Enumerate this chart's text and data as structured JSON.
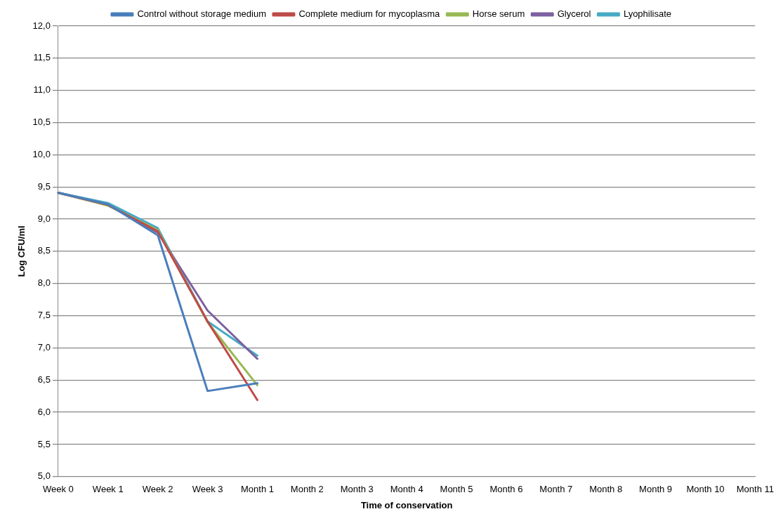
{
  "chart_data": {
    "type": "line",
    "xlabel": "Time of conservation",
    "ylabel": "Log CFU/ml",
    "categories": [
      "Week 0",
      "Week 1",
      "Week 2",
      "Week 3",
      "Month 1",
      "Month 2",
      "Month 3",
      "Month 4",
      "Month 5",
      "Month 6",
      "Month 7",
      "Month 8",
      "Month 9",
      "Month 10",
      "Month 11"
    ],
    "series": [
      {
        "name": "Control without storage medium",
        "color": "#4a7ebb",
        "values": [
          9.41,
          9.23,
          8.75,
          6.33,
          6.45,
          null,
          null,
          null,
          null,
          null,
          null,
          null,
          null,
          null,
          null
        ]
      },
      {
        "name": "Complete medium for mycoplasma",
        "color": "#be4b48",
        "values": [
          9.41,
          9.22,
          8.81,
          7.41,
          6.19,
          null,
          null,
          null,
          null,
          null,
          null,
          null,
          null,
          null,
          null
        ]
      },
      {
        "name": "Horse serum",
        "color": "#98b954",
        "values": [
          9.41,
          9.21,
          8.83,
          7.4,
          6.42,
          null,
          null,
          null,
          null,
          null,
          null,
          null,
          null,
          null,
          null
        ]
      },
      {
        "name": "Glycerol",
        "color": "#7d60a0",
        "values": [
          9.41,
          9.22,
          8.79,
          7.58,
          6.83,
          null,
          null,
          null,
          null,
          null,
          null,
          null,
          null,
          null,
          null
        ]
      },
      {
        "name": "Lyophilisate",
        "color": "#46aac5",
        "values": [
          9.41,
          9.25,
          8.86,
          7.41,
          6.88,
          null,
          null,
          null,
          null,
          null,
          null,
          null,
          null,
          null,
          null
        ]
      }
    ],
    "ylim": [
      5,
      12
    ],
    "yticks": [
      {
        "value": 5,
        "label": "5,0"
      },
      {
        "value": 5.5,
        "label": "5,5"
      },
      {
        "value": 6,
        "label": "6,0"
      },
      {
        "value": 6.5,
        "label": "6,5"
      },
      {
        "value": 7,
        "label": "7,0"
      },
      {
        "value": 7.5,
        "label": "7,5"
      },
      {
        "value": 8,
        "label": "8,0"
      },
      {
        "value": 8.5,
        "label": "8,5"
      },
      {
        "value": 9,
        "label": "9,0"
      },
      {
        "value": 9.5,
        "label": "9,5"
      },
      {
        "value": 10,
        "label": "10,0"
      },
      {
        "value": 10.5,
        "label": "10,5"
      },
      {
        "value": 11,
        "label": "11,0"
      },
      {
        "value": 11.5,
        "label": "11,5"
      },
      {
        "value": 12,
        "label": "12,0"
      }
    ],
    "grid": "y",
    "legend": "top",
    "marker": "none",
    "line_style": "solid"
  }
}
